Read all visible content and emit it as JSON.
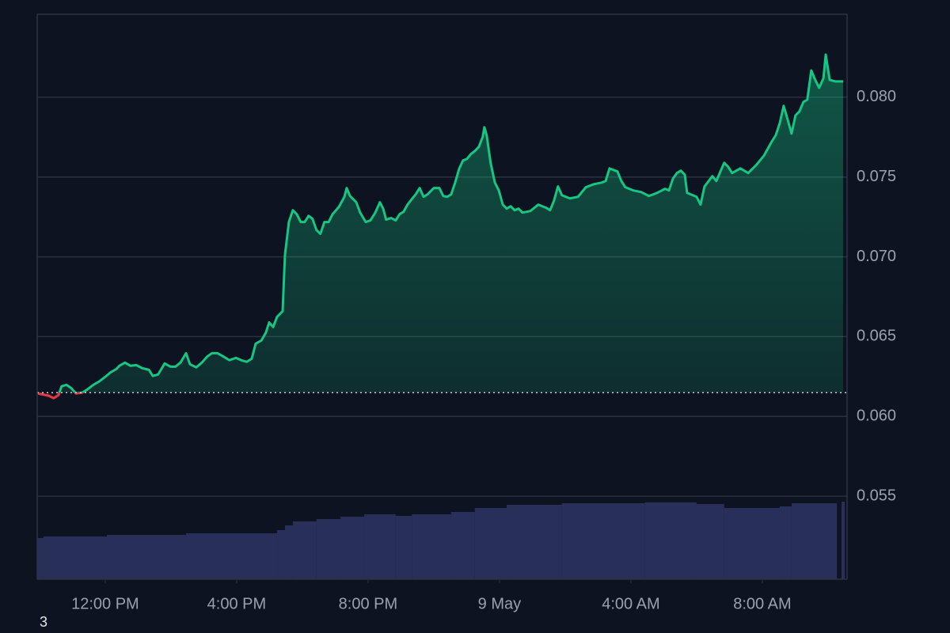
{
  "chart_data": {
    "type": "line",
    "x": [
      9.95,
      10.29,
      10.43,
      10.58,
      10.67,
      10.82,
      10.96,
      11.11,
      11.3,
      11.45,
      11.64,
      11.81,
      12.0,
      12.17,
      12.34,
      12.43,
      12.6,
      12.77,
      12.94,
      13.13,
      13.33,
      13.45,
      13.61,
      13.81,
      13.98,
      14.14,
      14.29,
      14.46,
      14.58,
      14.77,
      14.94,
      15.11,
      15.25,
      15.42,
      15.59,
      15.78,
      15.98,
      16.14,
      16.31,
      16.46,
      16.58,
      16.75,
      16.89,
      16.99,
      17.11,
      17.23,
      17.4,
      17.47,
      17.59,
      17.71,
      17.83,
      17.95,
      18.07,
      18.19,
      18.31,
      18.43,
      18.55,
      18.67,
      18.8,
      18.92,
      19.11,
      19.28,
      19.35,
      19.45,
      19.64,
      19.76,
      19.93,
      20.07,
      20.22,
      20.36,
      20.46,
      20.55,
      20.7,
      20.84,
      20.96,
      21.08,
      21.2,
      21.33,
      21.45,
      21.57,
      21.69,
      21.81,
      22.0,
      22.17,
      22.29,
      22.41,
      22.53,
      22.65,
      22.77,
      22.89,
      23.01,
      23.13,
      23.25,
      23.37,
      23.49,
      23.54,
      23.61,
      23.73,
      23.86,
      23.98,
      24.1,
      24.22,
      24.34,
      24.46,
      24.58,
      24.7,
      24.94,
      25.18,
      25.42,
      25.54,
      25.66,
      25.78,
      25.9,
      26.14,
      26.39,
      26.63,
      26.87,
      27.11,
      27.23,
      27.35,
      27.59,
      27.71,
      27.83,
      28.07,
      28.31,
      28.55,
      28.8,
      29.04,
      29.16,
      29.28,
      29.4,
      29.52,
      29.64,
      29.71,
      30.0,
      30.12,
      30.24,
      30.48,
      30.6,
      30.84,
      30.96,
      31.08,
      31.33,
      31.57,
      31.81,
      32.05,
      32.29,
      32.41,
      32.53,
      32.65,
      32.77,
      32.89,
      33.01,
      33.13,
      33.25,
      33.37,
      33.49,
      33.61,
      33.73,
      33.86,
      33.93,
      34.05,
      34.22,
      34.46
    ],
    "series": [
      {
        "color": "#16c784",
        "below_color": "#ea3943",
        "values": [
          0.06144,
          0.06129,
          0.06114,
          0.06134,
          0.06188,
          0.06198,
          0.06178,
          0.06144,
          0.06149,
          0.06168,
          0.06198,
          0.06218,
          0.06248,
          0.06277,
          0.06297,
          0.06317,
          0.06337,
          0.06317,
          0.06322,
          0.06302,
          0.06292,
          0.06253,
          0.06263,
          0.06332,
          0.06312,
          0.06312,
          0.06337,
          0.06396,
          0.06327,
          0.06307,
          0.06337,
          0.06376,
          0.06396,
          0.06396,
          0.06376,
          0.06352,
          0.06367,
          0.06352,
          0.06342,
          0.06362,
          0.06456,
          0.06475,
          0.06525,
          0.06589,
          0.0656,
          0.06624,
          0.06659,
          0.0701,
          0.07218,
          0.07292,
          0.07267,
          0.07218,
          0.07218,
          0.07257,
          0.07238,
          0.07168,
          0.07144,
          0.07218,
          0.07218,
          0.07267,
          0.07312,
          0.07376,
          0.07431,
          0.07381,
          0.07342,
          0.07277,
          0.07218,
          0.07228,
          0.07277,
          0.07342,
          0.07302,
          0.07233,
          0.07243,
          0.07228,
          0.07267,
          0.07282,
          0.07327,
          0.07361,
          0.07391,
          0.07431,
          0.07376,
          0.07391,
          0.07431,
          0.07431,
          0.07381,
          0.07376,
          0.07391,
          0.07465,
          0.0755,
          0.07604,
          0.07614,
          0.07644,
          0.07663,
          0.07688,
          0.07752,
          0.07812,
          0.07762,
          0.07589,
          0.07465,
          0.07416,
          0.07327,
          0.07302,
          0.07317,
          0.07292,
          0.07302,
          0.07277,
          0.07287,
          0.07327,
          0.07307,
          0.07292,
          0.07352,
          0.07441,
          0.07386,
          0.07366,
          0.07376,
          0.07436,
          0.07455,
          0.07465,
          0.07475,
          0.07554,
          0.07535,
          0.07475,
          0.07436,
          0.07416,
          0.07406,
          0.07381,
          0.07401,
          0.07426,
          0.07416,
          0.0749,
          0.07525,
          0.0754,
          0.07515,
          0.07401,
          0.07376,
          0.07327,
          0.07441,
          0.07505,
          0.07475,
          0.07589,
          0.07564,
          0.07525,
          0.07554,
          0.07525,
          0.07574,
          0.07634,
          0.07723,
          0.07762,
          0.07837,
          0.07946,
          0.07861,
          0.07772,
          0.07886,
          0.07911,
          0.0797,
          0.07985,
          0.08168,
          0.08109,
          0.08059,
          0.08119,
          0.08267,
          0.08109,
          0.08099,
          0.08099
        ]
      }
    ],
    "baseline": 0.06149,
    "volume": {
      "color": "#28305a",
      "bins": [
        9.93,
        10.12,
        12.05,
        14.46,
        17.23,
        17.47,
        17.71,
        18.43,
        19.16,
        19.88,
        20.84,
        21.33,
        22.53,
        23.25,
        24.22,
        25.9,
        28.43,
        30.0,
        30.84,
        32.53,
        32.89,
        34.27,
        34.41,
        34.51
      ],
      "values": [
        52,
        54,
        56,
        58,
        62,
        68,
        73,
        76,
        79,
        82,
        80,
        82,
        85,
        90,
        94,
        96,
        97,
        95,
        90,
        92,
        96,
        null,
        98
      ],
      "lim": [
        0,
        100
      ]
    },
    "xlim": [
      9.93,
      34.58
    ],
    "xticks": [
      {
        "value": 12,
        "label": "12:00 PM"
      },
      {
        "value": 16,
        "label": "4:00 PM"
      },
      {
        "value": 20,
        "label": "8:00 PM"
      },
      {
        "value": 24,
        "label": "9 May"
      },
      {
        "value": 28,
        "label": "4:00 AM"
      },
      {
        "value": 32,
        "label": "8:00 AM"
      }
    ],
    "ylim": [
      0.0498,
      0.0852
    ],
    "yticks": [
      0.055,
      {
        "value": 0.06,
        "label": "0.060"
      },
      0.065,
      {
        "value": 0.07,
        "label": "0.070"
      },
      0.075,
      {
        "value": 0.08,
        "label": "0.080"
      }
    ],
    "grid": true,
    "footnote": "3"
  }
}
